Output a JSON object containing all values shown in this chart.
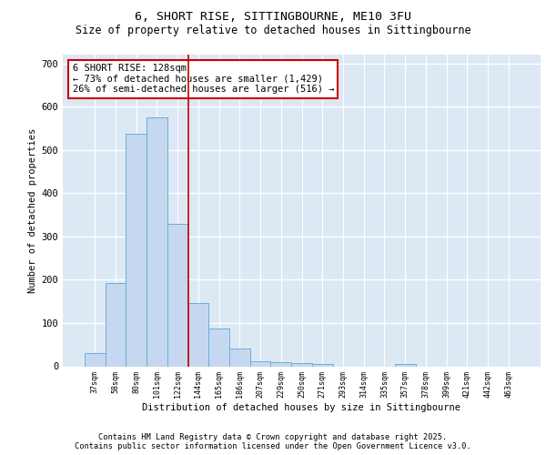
{
  "title1": "6, SHORT RISE, SITTINGBOURNE, ME10 3FU",
  "title2": "Size of property relative to detached houses in Sittingbourne",
  "xlabel": "Distribution of detached houses by size in Sittingbourne",
  "ylabel": "Number of detached properties",
  "categories": [
    "37sqm",
    "58sqm",
    "80sqm",
    "101sqm",
    "122sqm",
    "144sqm",
    "165sqm",
    "186sqm",
    "207sqm",
    "229sqm",
    "250sqm",
    "271sqm",
    "293sqm",
    "314sqm",
    "335sqm",
    "357sqm",
    "378sqm",
    "399sqm",
    "421sqm",
    "442sqm",
    "463sqm"
  ],
  "values": [
    30,
    193,
    537,
    575,
    330,
    147,
    88,
    40,
    12,
    10,
    8,
    5,
    0,
    0,
    0,
    5,
    0,
    0,
    0,
    0,
    0
  ],
  "bar_color": "#c5d8ef",
  "bar_edge_color": "#6baed6",
  "vline_color": "#cc0000",
  "annotation_text": "6 SHORT RISE: 128sqm\n← 73% of detached houses are smaller (1,429)\n26% of semi-detached houses are larger (516) →",
  "annotation_box_color": "#ffffff",
  "annotation_box_edge": "#cc0000",
  "ylim": [
    0,
    720
  ],
  "yticks": [
    0,
    100,
    200,
    300,
    400,
    500,
    600,
    700
  ],
  "background_color": "#dde8f5",
  "grid_color": "#ffffff",
  "fig_color": "#ffffff",
  "footer1": "Contains HM Land Registry data © Crown copyright and database right 2025.",
  "footer2": "Contains public sector information licensed under the Open Government Licence v3.0."
}
